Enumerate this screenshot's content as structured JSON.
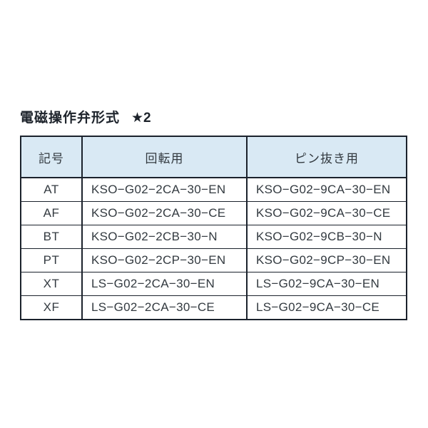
{
  "page": {
    "title": "電磁操作弁形式",
    "title_mark": "★2"
  },
  "table": {
    "headers": [
      "記号",
      "回転用",
      "ピン抜き用"
    ],
    "rows": [
      {
        "symbol": "AT",
        "rotation": "KSO−G02−2CA−30−EN",
        "pin": "KSO−G02−9CA−30−EN"
      },
      {
        "symbol": "AF",
        "rotation": "KSO−G02−2CA−30−CE",
        "pin": "KSO−G02−9CA−30−CE"
      },
      {
        "symbol": "BT",
        "rotation": "KSO−G02−2CB−30−N",
        "pin": "KSO−G02−9CB−30−N"
      },
      {
        "symbol": "PT",
        "rotation": "KSO−G02−2CP−30−EN",
        "pin": "KSO−G02−9CP−30−EN"
      },
      {
        "symbol": "XT",
        "rotation": "LS−G02−2CA−30−EN",
        "pin": "LS−G02−9CA−30−EN"
      },
      {
        "symbol": "XF",
        "rotation": "LS−G02−2CA−30−CE",
        "pin": "LS−G02−9CA−30−CE"
      }
    ]
  },
  "colors": {
    "header_background": "#d9e9f4",
    "border": "#1b222c",
    "text": "#333a40",
    "page_background": "#ffffff"
  }
}
